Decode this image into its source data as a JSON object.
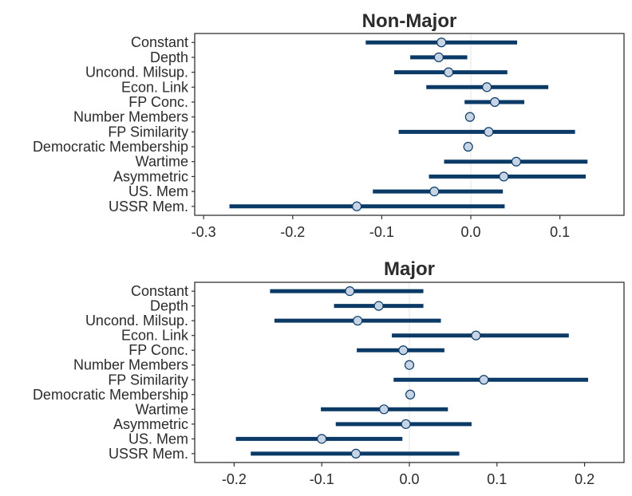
{
  "chart_data": [
    {
      "type": "coefficient-plot",
      "title": "Non-Major",
      "categories": [
        "Constant",
        "Depth",
        "Uncond. Milsup.",
        "Econ. Link",
        "FP Conc.",
        "Number Members",
        "FP Similarity",
        "Democratic Membership",
        "Wartime",
        "Asymmetric",
        "US. Mem",
        "USSR Mem."
      ],
      "estimates": [
        -0.033,
        -0.036,
        -0.025,
        0.018,
        0.027,
        -0.001,
        0.02,
        -0.003,
        0.051,
        0.037,
        -0.041,
        -0.128
      ],
      "lower": [
        -0.118,
        -0.068,
        -0.086,
        -0.05,
        -0.007,
        -0.001,
        -0.081,
        -0.003,
        -0.03,
        -0.047,
        -0.11,
        -0.271
      ],
      "upper": [
        0.052,
        -0.004,
        0.041,
        0.087,
        0.06,
        -0.001,
        0.117,
        -0.003,
        0.131,
        0.129,
        0.036,
        0.038
      ],
      "xlim": [
        -0.31,
        0.172
      ],
      "xticks": [
        -0.3,
        -0.2,
        -0.1,
        0.0,
        0.1
      ],
      "xtick_labels": [
        "-0.3",
        "-0.2",
        "-0.1",
        "0.0",
        "0.1"
      ],
      "colors": {
        "bar": "#0b3a66",
        "point_fill": "#c6d4e6",
        "zero_line": "#e6e6e6"
      }
    },
    {
      "type": "coefficient-plot",
      "title": "Major",
      "categories": [
        "Constant",
        "Depth",
        "Uncond. Milsup.",
        "Econ. Link",
        "FP Conc.",
        "Number Members",
        "FP Similarity",
        "Democratic Membership",
        "Wartime",
        "Asymmetric",
        "US. Mem",
        "USSR Mem."
      ],
      "estimates": [
        -0.068,
        -0.035,
        -0.059,
        0.076,
        -0.007,
        0.0,
        0.085,
        0.001,
        -0.029,
        -0.004,
        -0.1,
        -0.061
      ],
      "lower": [
        -0.159,
        -0.086,
        -0.154,
        -0.02,
        -0.06,
        0.0,
        -0.018,
        0.001,
        -0.101,
        -0.084,
        -0.198,
        -0.181
      ],
      "upper": [
        0.016,
        0.016,
        0.036,
        0.182,
        0.04,
        0.0,
        0.204,
        0.001,
        0.044,
        0.071,
        -0.008,
        0.057
      ],
      "xlim": [
        -0.245,
        0.245
      ],
      "xticks": [
        -0.2,
        -0.1,
        0.0,
        0.1,
        0.2
      ],
      "xtick_labels": [
        "-0.2",
        "-0.1",
        "0.0",
        "0.1",
        "0.2"
      ],
      "colors": {
        "bar": "#0b3a66",
        "point_fill": "#c6d4e6",
        "zero_line": "#e6e6e6"
      }
    }
  ]
}
